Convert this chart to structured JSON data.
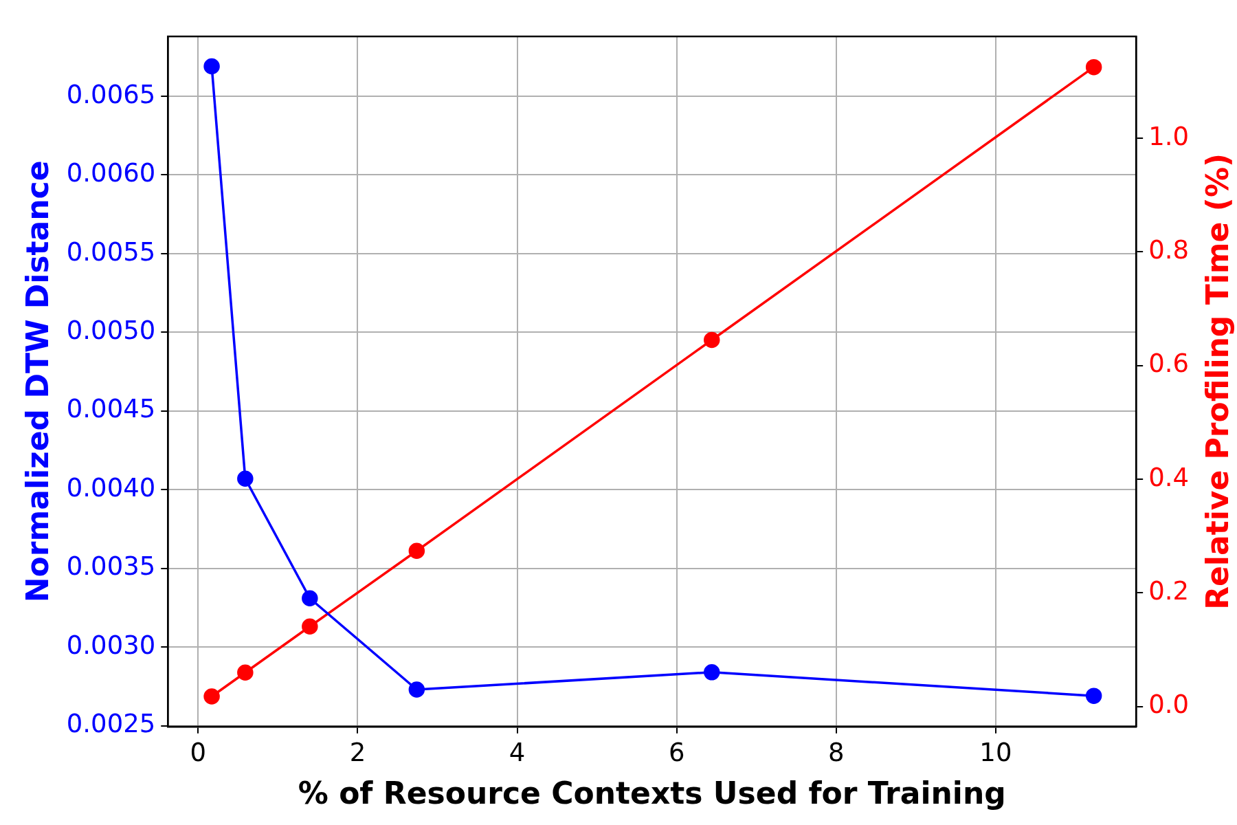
{
  "chart_data": {
    "type": "line",
    "xlabel": "% of Resource Contexts Used for Training",
    "ylabel": "Normalized DTW Distance",
    "y2label": "Relative Profiling Time (%)",
    "x": [
      0.17,
      0.59,
      1.4,
      2.74,
      6.44,
      11.23
    ],
    "series": [
      {
        "color": "#0000ff",
        "values": [
          0.00669,
          0.00407,
          0.00331,
          0.00273,
          0.00284,
          0.00269
        ]
      },
      {
        "color": "#ff0000",
        "axis": "y2",
        "values": [
          0.018,
          0.06,
          0.141,
          0.274,
          0.645,
          1.125
        ]
      }
    ],
    "xlim": [
      -0.38,
      11.76
    ],
    "xticks": [
      0,
      2,
      4,
      6,
      8,
      10
    ],
    "ylim": [
      0.002495,
      0.00688
    ],
    "yticks": [
      0.0025,
      {
        "value": 0.003,
        "label": "0.0030"
      },
      0.0035,
      {
        "value": 0.004,
        "label": "0.0040"
      },
      0.0045,
      {
        "value": 0.005,
        "label": "0.0050"
      },
      0.0055,
      {
        "value": 0.006,
        "label": "0.0060"
      },
      0.0065
    ],
    "y2lim": [
      -0.035,
      1.179
    ],
    "y2ticks": [
      {
        "value": 0,
        "label": "0.0"
      },
      {
        "value": 0.2,
        "label": "0.2"
      },
      {
        "value": 0.4,
        "label": "0.4"
      },
      {
        "value": 0.6,
        "label": "0.6"
      },
      {
        "value": 0.8,
        "label": "0.8"
      },
      {
        "value": 1,
        "label": "1.0"
      }
    ],
    "grid": true,
    "marker": "circle",
    "line_style": "solid",
    "legend": false
  }
}
